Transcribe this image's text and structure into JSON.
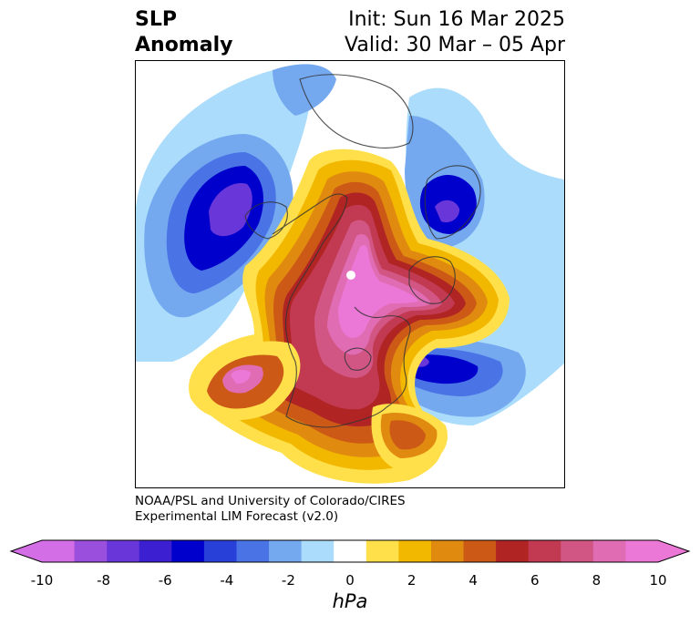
{
  "header": {
    "title_line1": "SLP",
    "title_line2": "Anomaly",
    "init_text": "Init: Sun 16 Mar 2025",
    "valid_text": "Valid: 30 Mar – 05 Apr"
  },
  "credit": {
    "line1": "NOAA/PSL and University of Colorado/CIRES",
    "line2": "Experimental LIM Forecast (v2.0)"
  },
  "colorbar": {
    "unit_label": "hPa",
    "tick_labels": [
      "-10",
      "-8",
      "-6",
      "-4",
      "-2",
      "0",
      "2",
      "4",
      "6",
      "8",
      "10"
    ],
    "levels": [
      -10,
      -9,
      -8,
      -7,
      -6,
      -5,
      -4,
      -3,
      -2,
      -1,
      1,
      2,
      3,
      4,
      5,
      6,
      7,
      8,
      9,
      10
    ],
    "colors": [
      "#d46ee6",
      "#9b4fdd",
      "#6936d9",
      "#3b1fd1",
      "#0000cc",
      "#2840d8",
      "#4a74e6",
      "#74a9f0",
      "#abdcfb",
      "#ffffff",
      "#ffe04a",
      "#f2b800",
      "#e08a10",
      "#cc5a16",
      "#b02424",
      "#c23a52",
      "#d25684",
      "#e06cb4",
      "#eb78d6"
    ],
    "extend_low_color": "#d46ee6",
    "extend_high_color": "#eb78d6"
  },
  "map": {
    "projection": "polar stereographic",
    "features": [
      "positive anomaly over North Pole and Arctic Canada",
      "positive anomaly over western and central North America",
      "negative anomaly over Gulf of Alaska / North Pacific",
      "negative anomaly over Scandinavia",
      "negative anomaly over North Atlantic"
    ]
  }
}
